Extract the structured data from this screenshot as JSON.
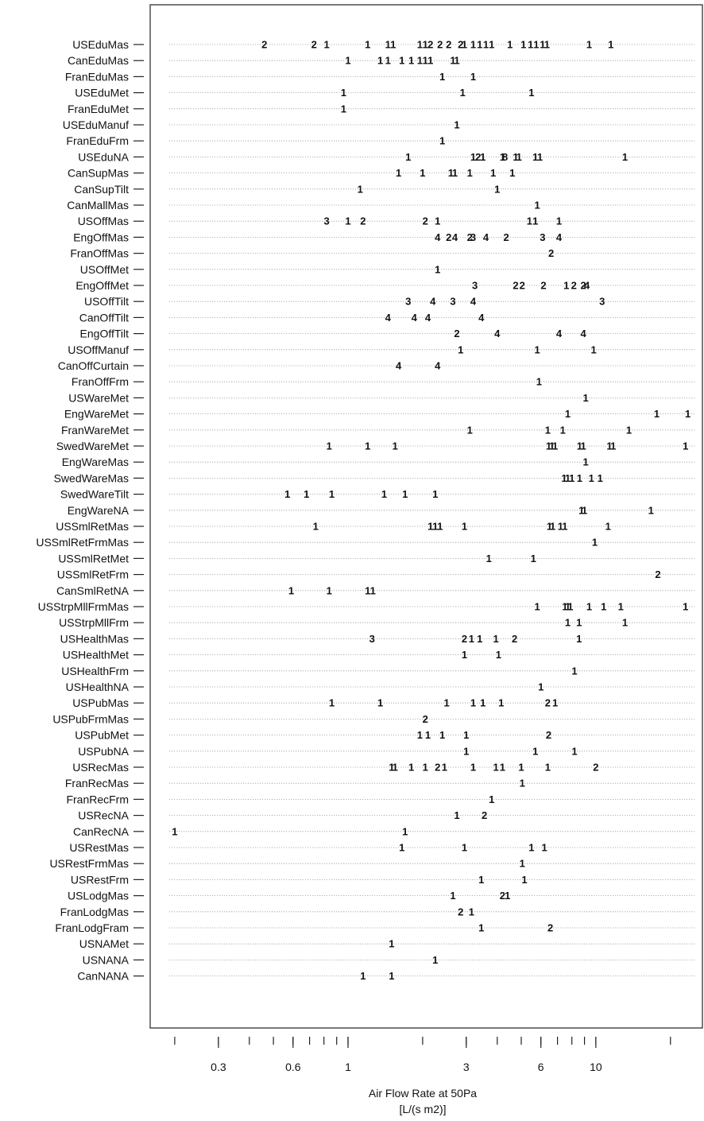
{
  "chart_data": {
    "type": "scatter",
    "xlabel": "Air Flow Rate at 50Pa",
    "xunit": "[L/(s m2)]",
    "xscale": "log",
    "xlim": [
      0.19,
      25
    ],
    "xticks_labeled": [
      0.3,
      0.6,
      1,
      3,
      6,
      10
    ],
    "xticks_minor": [
      0.2,
      0.3,
      0.4,
      0.5,
      0.6,
      0.7,
      0.8,
      0.9,
      1,
      2,
      3,
      4,
      5,
      6,
      7,
      8,
      9,
      10,
      20
    ],
    "xtick_labels": [
      "0.3",
      "0.6",
      "1",
      "3",
      "6",
      "10"
    ],
    "rows": [
      {
        "label": "USEduMas",
        "points": [
          [
            0.46,
            "2"
          ],
          [
            0.73,
            "2"
          ],
          [
            0.82,
            "1"
          ],
          [
            1.2,
            "1"
          ],
          [
            1.45,
            "1"
          ],
          [
            1.52,
            "1"
          ],
          [
            1.95,
            "1"
          ],
          [
            2.05,
            "1"
          ],
          [
            2.15,
            "2"
          ],
          [
            2.35,
            "2"
          ],
          [
            2.55,
            "2"
          ],
          [
            2.85,
            "2"
          ],
          [
            2.95,
            "1"
          ],
          [
            3.2,
            "1"
          ],
          [
            3.4,
            "1"
          ],
          [
            3.6,
            "1"
          ],
          [
            3.8,
            "1"
          ],
          [
            4.5,
            "1"
          ],
          [
            5.1,
            "1"
          ],
          [
            5.45,
            "1"
          ],
          [
            5.75,
            "1"
          ],
          [
            6.1,
            "1"
          ],
          [
            6.35,
            "1"
          ],
          [
            9.4,
            "1"
          ],
          [
            11.5,
            "1"
          ]
        ]
      },
      {
        "label": "CanEduMas",
        "points": [
          [
            1.0,
            "1"
          ],
          [
            1.35,
            "1"
          ],
          [
            1.45,
            "1"
          ],
          [
            1.65,
            "1"
          ],
          [
            1.8,
            "1"
          ],
          [
            1.95,
            "1"
          ],
          [
            2.05,
            "1"
          ],
          [
            2.15,
            "1"
          ],
          [
            2.65,
            "1"
          ],
          [
            2.75,
            "1"
          ]
        ]
      },
      {
        "label": "FranEduMas",
        "points": [
          [
            2.4,
            "1"
          ],
          [
            3.2,
            "1"
          ]
        ]
      },
      {
        "label": "USEduMet",
        "points": [
          [
            0.96,
            "1"
          ],
          [
            2.9,
            "1"
          ],
          [
            5.5,
            "1"
          ]
        ]
      },
      {
        "label": "FranEduMet",
        "points": [
          [
            0.96,
            "1"
          ]
        ]
      },
      {
        "label": "USEduManuf",
        "points": [
          [
            2.75,
            "1"
          ]
        ]
      },
      {
        "label": "FranEduFrm",
        "points": [
          [
            2.4,
            "1"
          ]
        ]
      },
      {
        "label": "USEduNA",
        "points": [
          [
            1.75,
            "1"
          ],
          [
            3.2,
            "1"
          ],
          [
            3.35,
            "2"
          ],
          [
            3.5,
            "1"
          ],
          [
            4.2,
            "1"
          ],
          [
            4.3,
            "8"
          ],
          [
            4.75,
            "1"
          ],
          [
            4.9,
            "1"
          ],
          [
            5.7,
            "1"
          ],
          [
            5.95,
            "1"
          ],
          [
            13.1,
            "1"
          ]
        ]
      },
      {
        "label": "CanSupMas",
        "points": [
          [
            1.6,
            "1"
          ],
          [
            2.0,
            "1"
          ],
          [
            2.6,
            "1"
          ],
          [
            2.7,
            "1"
          ],
          [
            3.1,
            "1"
          ],
          [
            3.85,
            "1"
          ],
          [
            4.6,
            "1"
          ]
        ]
      },
      {
        "label": "CanSupTilt",
        "points": [
          [
            1.12,
            "1"
          ],
          [
            4.0,
            "1"
          ]
        ]
      },
      {
        "label": "CanMallMas",
        "points": [
          [
            5.8,
            "1"
          ]
        ]
      },
      {
        "label": "USOffMas",
        "points": [
          [
            0.82,
            "3"
          ],
          [
            1.0,
            "1"
          ],
          [
            1.15,
            "2"
          ],
          [
            2.05,
            "2"
          ],
          [
            2.3,
            "1"
          ],
          [
            5.4,
            "1"
          ],
          [
            5.7,
            "1"
          ],
          [
            7.1,
            "1"
          ]
        ]
      },
      {
        "label": "EngOffMas",
        "points": [
          [
            2.3,
            "4"
          ],
          [
            2.55,
            "2"
          ],
          [
            2.7,
            "4"
          ],
          [
            3.1,
            "2"
          ],
          [
            3.2,
            "3"
          ],
          [
            3.6,
            "4"
          ],
          [
            4.35,
            "2"
          ],
          [
            6.1,
            "3"
          ],
          [
            7.1,
            "4"
          ]
        ]
      },
      {
        "label": "FranOffMas",
        "points": [
          [
            6.6,
            "2"
          ]
        ]
      },
      {
        "label": "USOffMet",
        "points": [
          [
            2.3,
            "1"
          ]
        ]
      },
      {
        "label": "EngOffMet",
        "points": [
          [
            3.25,
            "3"
          ],
          [
            4.75,
            "2"
          ],
          [
            5.05,
            "2"
          ],
          [
            6.15,
            "2"
          ],
          [
            7.6,
            "1"
          ],
          [
            8.15,
            "2"
          ],
          [
            8.9,
            "2"
          ],
          [
            9.2,
            "4"
          ]
        ]
      },
      {
        "label": "USOffTilt",
        "points": [
          [
            1.75,
            "3"
          ],
          [
            2.2,
            "4"
          ],
          [
            2.65,
            "3"
          ],
          [
            3.2,
            "4"
          ],
          [
            10.6,
            "3"
          ]
        ]
      },
      {
        "label": "CanOffTilt",
        "points": [
          [
            1.45,
            "4"
          ],
          [
            1.85,
            "4"
          ],
          [
            2.1,
            "4"
          ],
          [
            3.45,
            "4"
          ]
        ]
      },
      {
        "label": "EngOffTilt",
        "points": [
          [
            2.75,
            "2"
          ],
          [
            4.0,
            "4"
          ],
          [
            7.1,
            "4"
          ],
          [
            8.9,
            "4"
          ]
        ]
      },
      {
        "label": "USOffManuf",
        "points": [
          [
            2.85,
            "1"
          ],
          [
            5.8,
            "1"
          ],
          [
            9.8,
            "1"
          ]
        ]
      },
      {
        "label": "CanOffCurtain",
        "points": [
          [
            1.6,
            "4"
          ],
          [
            2.3,
            "4"
          ]
        ]
      },
      {
        "label": "FranOffFrm",
        "points": [
          [
            5.9,
            "1"
          ]
        ]
      },
      {
        "label": "USWareMet",
        "points": [
          [
            9.1,
            "1"
          ]
        ]
      },
      {
        "label": "EngWareMet",
        "points": [
          [
            7.7,
            "1"
          ],
          [
            17.6,
            "1"
          ],
          [
            23.5,
            "1"
          ]
        ]
      },
      {
        "label": "FranWareMet",
        "points": [
          [
            3.1,
            "1"
          ],
          [
            6.4,
            "1"
          ],
          [
            7.35,
            "1"
          ],
          [
            13.6,
            "1"
          ]
        ]
      },
      {
        "label": "SwedWareMet",
        "points": [
          [
            0.84,
            "1"
          ],
          [
            1.2,
            "1"
          ],
          [
            1.55,
            "1"
          ],
          [
            6.45,
            "1"
          ],
          [
            6.65,
            "1"
          ],
          [
            6.85,
            "1"
          ],
          [
            8.6,
            "1"
          ],
          [
            8.9,
            "1"
          ],
          [
            11.35,
            "1"
          ],
          [
            11.75,
            "1"
          ],
          [
            23.0,
            "1"
          ]
        ]
      },
      {
        "label": "EngWareMas",
        "points": [
          [
            9.1,
            "1"
          ]
        ]
      },
      {
        "label": "SwedWareMas",
        "points": [
          [
            7.45,
            "1"
          ],
          [
            7.7,
            "1"
          ],
          [
            8.0,
            "1"
          ],
          [
            8.6,
            "1"
          ],
          [
            9.6,
            "1"
          ],
          [
            10.4,
            "1"
          ]
        ]
      },
      {
        "label": "SwedWareTilt",
        "points": [
          [
            0.57,
            "1"
          ],
          [
            0.68,
            "1"
          ],
          [
            0.86,
            "1"
          ],
          [
            1.4,
            "1"
          ],
          [
            1.7,
            "1"
          ],
          [
            2.25,
            "1"
          ]
        ]
      },
      {
        "label": "EngWareNA",
        "points": [
          [
            8.75,
            "1"
          ],
          [
            9.0,
            "1"
          ],
          [
            16.7,
            "1"
          ]
        ]
      },
      {
        "label": "USSmlRetMas",
        "points": [
          [
            0.74,
            "1"
          ],
          [
            2.15,
            "1"
          ],
          [
            2.25,
            "1"
          ],
          [
            2.35,
            "1"
          ],
          [
            2.95,
            "1"
          ],
          [
            6.5,
            "1"
          ],
          [
            6.7,
            "1"
          ],
          [
            7.2,
            "1"
          ],
          [
            7.5,
            "1"
          ],
          [
            11.2,
            "1"
          ]
        ]
      },
      {
        "label": "USSmlRetFrmMas",
        "points": [
          [
            9.9,
            "1"
          ]
        ]
      },
      {
        "label": "USSmlRetMet",
        "points": [
          [
            3.7,
            "1"
          ],
          [
            5.6,
            "1"
          ]
        ]
      },
      {
        "label": "USSmlRetFrm",
        "points": [
          [
            17.8,
            "2"
          ]
        ]
      },
      {
        "label": "CanSmlRetNA",
        "points": [
          [
            0.59,
            "1"
          ],
          [
            0.84,
            "1"
          ],
          [
            1.2,
            "1"
          ],
          [
            1.26,
            "1"
          ]
        ]
      },
      {
        "label": "USStrpMllFrmMas",
        "points": [
          [
            5.8,
            "1"
          ],
          [
            7.5,
            "1"
          ],
          [
            7.7,
            "1"
          ],
          [
            7.9,
            "1"
          ],
          [
            9.4,
            "1"
          ],
          [
            10.75,
            "1"
          ],
          [
            12.6,
            "1"
          ],
          [
            23.0,
            "1"
          ]
        ]
      },
      {
        "label": "USStrpMllFrm",
        "points": [
          [
            7.7,
            "1"
          ],
          [
            8.55,
            "1"
          ],
          [
            13.1,
            "1"
          ]
        ]
      },
      {
        "label": "USHealthMas",
        "points": [
          [
            1.25,
            "3"
          ],
          [
            2.95,
            "2"
          ],
          [
            3.15,
            "1"
          ],
          [
            3.4,
            "1"
          ],
          [
            3.95,
            "1"
          ],
          [
            4.7,
            "2"
          ],
          [
            8.55,
            "1"
          ]
        ]
      },
      {
        "label": "USHealthMet",
        "points": [
          [
            2.95,
            "1"
          ],
          [
            4.05,
            "1"
          ]
        ]
      },
      {
        "label": "USHealthFrm",
        "points": [
          [
            8.2,
            "1"
          ]
        ]
      },
      {
        "label": "USHealthNA",
        "points": [
          [
            6.0,
            "1"
          ]
        ]
      },
      {
        "label": "USPubMas",
        "points": [
          [
            0.86,
            "1"
          ],
          [
            1.35,
            "1"
          ],
          [
            2.5,
            "1"
          ],
          [
            3.2,
            "1"
          ],
          [
            3.5,
            "1"
          ],
          [
            4.15,
            "1"
          ],
          [
            6.4,
            "2"
          ],
          [
            6.85,
            "1"
          ]
        ]
      },
      {
        "label": "USPubFrmMas",
        "points": [
          [
            2.05,
            "2"
          ]
        ]
      },
      {
        "label": "USPubMet",
        "points": [
          [
            1.95,
            "1"
          ],
          [
            2.1,
            "1"
          ],
          [
            2.4,
            "1"
          ],
          [
            3.0,
            "1"
          ],
          [
            6.45,
            "2"
          ]
        ]
      },
      {
        "label": "USPubNA",
        "points": [
          [
            3.0,
            "1"
          ],
          [
            5.7,
            "1"
          ],
          [
            8.2,
            "1"
          ]
        ]
      },
      {
        "label": "USRecMas",
        "points": [
          [
            1.5,
            "1"
          ],
          [
            1.55,
            "1"
          ],
          [
            1.8,
            "1"
          ],
          [
            2.05,
            "1"
          ],
          [
            2.3,
            "2"
          ],
          [
            2.45,
            "1"
          ],
          [
            3.2,
            "1"
          ],
          [
            3.95,
            "1"
          ],
          [
            4.2,
            "1"
          ],
          [
            5.0,
            "1"
          ],
          [
            6.4,
            "1"
          ],
          [
            10.0,
            "2"
          ]
        ]
      },
      {
        "label": "FranRecMas",
        "points": [
          [
            5.05,
            "1"
          ]
        ]
      },
      {
        "label": "FranRecFrm",
        "points": [
          [
            3.8,
            "1"
          ]
        ]
      },
      {
        "label": "USRecNA",
        "points": [
          [
            2.75,
            "1"
          ],
          [
            3.55,
            "2"
          ]
        ]
      },
      {
        "label": "CanRecNA",
        "points": [
          [
            0.2,
            "1"
          ],
          [
            1.7,
            "1"
          ]
        ]
      },
      {
        "label": "USRestMas",
        "points": [
          [
            1.65,
            "1"
          ],
          [
            2.95,
            "1"
          ],
          [
            5.5,
            "1"
          ],
          [
            6.2,
            "1"
          ]
        ]
      },
      {
        "label": "USRestFrmMas",
        "points": [
          [
            5.05,
            "1"
          ]
        ]
      },
      {
        "label": "USRestFrm",
        "points": [
          [
            3.45,
            "1"
          ],
          [
            5.15,
            "1"
          ]
        ]
      },
      {
        "label": "USLodgMas",
        "points": [
          [
            2.65,
            "1"
          ],
          [
            4.2,
            "2"
          ],
          [
            4.4,
            "1"
          ]
        ]
      },
      {
        "label": "FranLodgMas",
        "points": [
          [
            2.85,
            "2"
          ],
          [
            3.15,
            "1"
          ]
        ]
      },
      {
        "label": "FranLodgFram",
        "points": [
          [
            3.45,
            "1"
          ],
          [
            6.55,
            "2"
          ]
        ]
      },
      {
        "label": "USNAMet",
        "points": [
          [
            1.5,
            "1"
          ]
        ]
      },
      {
        "label": "USNANA",
        "points": [
          [
            2.25,
            "1"
          ]
        ]
      },
      {
        "label": "CanNANA",
        "points": [
          [
            1.15,
            "1"
          ],
          [
            1.5,
            "1"
          ]
        ]
      }
    ]
  }
}
